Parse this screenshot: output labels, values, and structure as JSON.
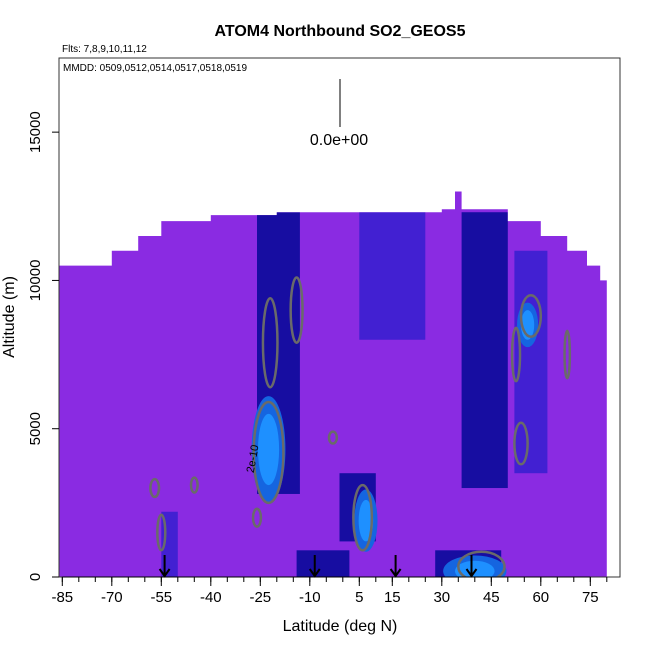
{
  "chart_data": {
    "type": "heatmap",
    "title": "ATOM4 Northbound SO2_GEOS5",
    "flights_text": "Flts: 7,8,9,10,11,12",
    "dates_text": "MMDD: 0509,0512,0514,0517,0518,0519",
    "xlabel": "Latitude (deg N)",
    "ylabel": "Altitude (m)",
    "xlim": [
      -86,
      84
    ],
    "ylim": [
      0,
      17500
    ],
    "x_ticks": [
      -85,
      -70,
      -55,
      -40,
      -25,
      -10,
      5,
      15,
      30,
      45,
      60,
      75
    ],
    "x_tick_labels": [
      "-85",
      "-70",
      "-55",
      "-40",
      "-25",
      "-10",
      "5",
      "15",
      "30",
      "45",
      "60",
      "75"
    ],
    "y_ticks": [
      0,
      5000,
      10000,
      15000
    ],
    "y_tick_labels": [
      "0",
      "5000",
      "10000",
      "15000"
    ],
    "scale_label": "0.0e+00",
    "contour_label": "2e-10",
    "colors": {
      "background": "#8a2be2",
      "dark": "#0a0a9a",
      "mid": "#3a1fd0",
      "light": "#1e90ff",
      "contour": "#6a6a6a"
    },
    "profile_top": [
      {
        "lat": -86,
        "alt": 10500
      },
      {
        "lat": -70,
        "alt": 11000
      },
      {
        "lat": -62,
        "alt": 11500
      },
      {
        "lat": -55,
        "alt": 12000
      },
      {
        "lat": -40,
        "alt": 12200
      },
      {
        "lat": -20,
        "alt": 12300
      },
      {
        "lat": 5,
        "alt": 12300
      },
      {
        "lat": 20,
        "alt": 12300
      },
      {
        "lat": 30,
        "alt": 12400
      },
      {
        "lat": 34,
        "alt": 13000
      },
      {
        "lat": 36,
        "alt": 12400
      },
      {
        "lat": 50,
        "alt": 12000
      },
      {
        "lat": 60,
        "alt": 11500
      },
      {
        "lat": 68,
        "alt": 11000
      },
      {
        "lat": 74,
        "alt": 10500
      },
      {
        "lat": 78,
        "alt": 10000
      },
      {
        "lat": 80,
        "alt": 9500
      }
    ],
    "dark_bands": [
      {
        "lat_min": -26,
        "lat_max": -13,
        "alt_min": 2800,
        "alt_max": 12300,
        "shade": "dark"
      },
      {
        "lat_min": 36,
        "lat_max": 50,
        "alt_min": 3000,
        "alt_max": 12300,
        "shade": "dark"
      },
      {
        "lat_min": 52,
        "lat_max": 62,
        "alt_min": 3500,
        "alt_max": 11000,
        "shade": "mid"
      },
      {
        "lat_min": -1,
        "lat_max": 10,
        "alt_min": 1200,
        "alt_max": 3500,
        "shade": "dark"
      },
      {
        "lat_min": -14,
        "lat_max": 2,
        "alt_min": 0,
        "alt_max": 900,
        "shade": "dark"
      },
      {
        "lat_min": 28,
        "lat_max": 48,
        "alt_min": 0,
        "alt_max": 900,
        "shade": "dark"
      },
      {
        "lat_min": -55,
        "lat_max": -50,
        "alt_min": 0,
        "alt_max": 2200,
        "shade": "mid"
      },
      {
        "lat_min": 5,
        "lat_max": 25,
        "alt_min": 8000,
        "alt_max": 12300,
        "shade": "mid"
      }
    ],
    "hotspots": [
      {
        "lat": -22.5,
        "alt": 4300,
        "r_lat": 3.2,
        "r_alt": 1200
      },
      {
        "lat": 7,
        "alt": 1900,
        "r_lat": 2.2,
        "r_alt": 700
      },
      {
        "lat": 40,
        "alt": 200,
        "r_lat": 6,
        "r_alt": 350
      },
      {
        "lat": 56,
        "alt": 8500,
        "r_lat": 2,
        "r_alt": 500
      }
    ],
    "contours": [
      {
        "lat": -22.5,
        "alt": 4200,
        "r_lat": 4.5,
        "r_alt": 1700
      },
      {
        "lat": -22,
        "alt": 7900,
        "r_lat": 2.2,
        "r_alt": 1500
      },
      {
        "lat": -14,
        "alt": 9000,
        "r_lat": 1.8,
        "r_alt": 1100
      },
      {
        "lat": 6,
        "alt": 2000,
        "r_lat": 2.8,
        "r_alt": 1100
      },
      {
        "lat": 54,
        "alt": 4500,
        "r_lat": 2,
        "r_alt": 700
      },
      {
        "lat": 57,
        "alt": 8800,
        "r_lat": 3,
        "r_alt": 700
      },
      {
        "lat": 52.5,
        "alt": 7500,
        "r_lat": 1.2,
        "r_alt": 900
      },
      {
        "lat": 68,
        "alt": 7500,
        "r_lat": 0.8,
        "r_alt": 800
      },
      {
        "lat": 42,
        "alt": 350,
        "r_lat": 7,
        "r_alt": 500
      },
      {
        "lat": -55,
        "alt": 1500,
        "r_lat": 1.2,
        "r_alt": 600
      },
      {
        "lat": -57,
        "alt": 3000,
        "r_lat": 1.3,
        "r_alt": 300
      },
      {
        "lat": -45,
        "alt": 3100,
        "r_lat": 1,
        "r_alt": 250
      },
      {
        "lat": -3,
        "alt": 4700,
        "r_lat": 1.2,
        "r_alt": 200
      },
      {
        "lat": -26,
        "alt": 2000,
        "r_lat": 1.2,
        "r_alt": 300
      }
    ],
    "flight_markers": [
      -54,
      -8.5,
      16,
      39
    ]
  }
}
